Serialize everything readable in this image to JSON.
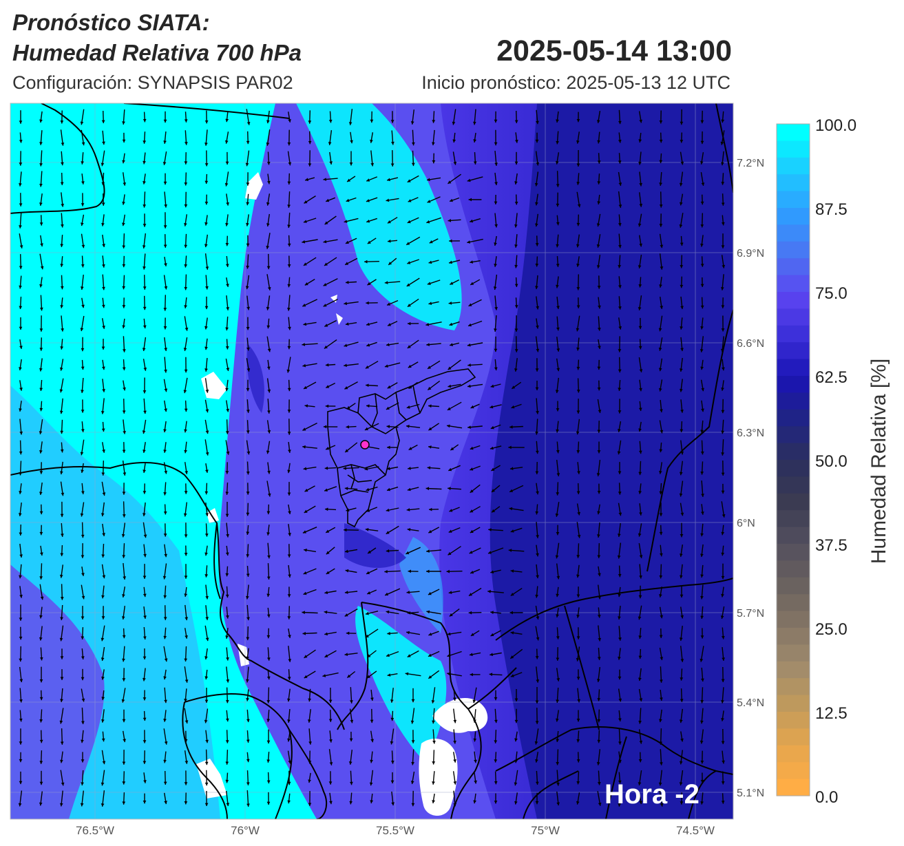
{
  "header": {
    "title_line1": "Pronóstico SIATA:",
    "title_line2": "Humedad Relativa 700 hPa",
    "datetime": "2025-05-14 13:00",
    "config": "Configuración: SYNAPSIS PAR02",
    "init": "Inicio pronóstico: 2025-05-13 12 UTC"
  },
  "map": {
    "lat_ticks": [
      "7.2°N",
      "6.9°N",
      "6.6°N",
      "6.3°N",
      "6°N",
      "5.7°N",
      "5.4°N",
      "5.1°N"
    ],
    "lon_ticks": [
      "76.5°W",
      "76°W",
      "75.5°W",
      "75°W",
      "74.5°W"
    ],
    "hora_label": "Hora -2",
    "field_colors": {
      "cyan": "#00ffff",
      "light_blue": "#2fb8ff",
      "violet": "#5a4ff0",
      "deep_blue": "#2a22c6",
      "navy": "#1c1aa6",
      "missing": "#ffffff"
    },
    "marker_color": "#ff33cc",
    "boundary_color": "#000000",
    "vector_color": "#000000"
  },
  "colorbar": {
    "title": "Humedad Relativa [%]",
    "tick_labels": [
      "100.0",
      "87.5",
      "75.0",
      "62.5",
      "50.0",
      "37.5",
      "25.0",
      "12.5",
      "0.0"
    ],
    "stops": [
      "#00ffff",
      "#1ec8ff",
      "#2f9cff",
      "#4b74f2",
      "#5b44f0",
      "#3b2ed8",
      "#1a14b4",
      "#1f2386",
      "#2b2f5e",
      "#3a3a52",
      "#524e5e",
      "#68605e",
      "#837465",
      "#9f8a6c",
      "#c09a5c",
      "#e5a64e",
      "#ffad45"
    ]
  }
}
